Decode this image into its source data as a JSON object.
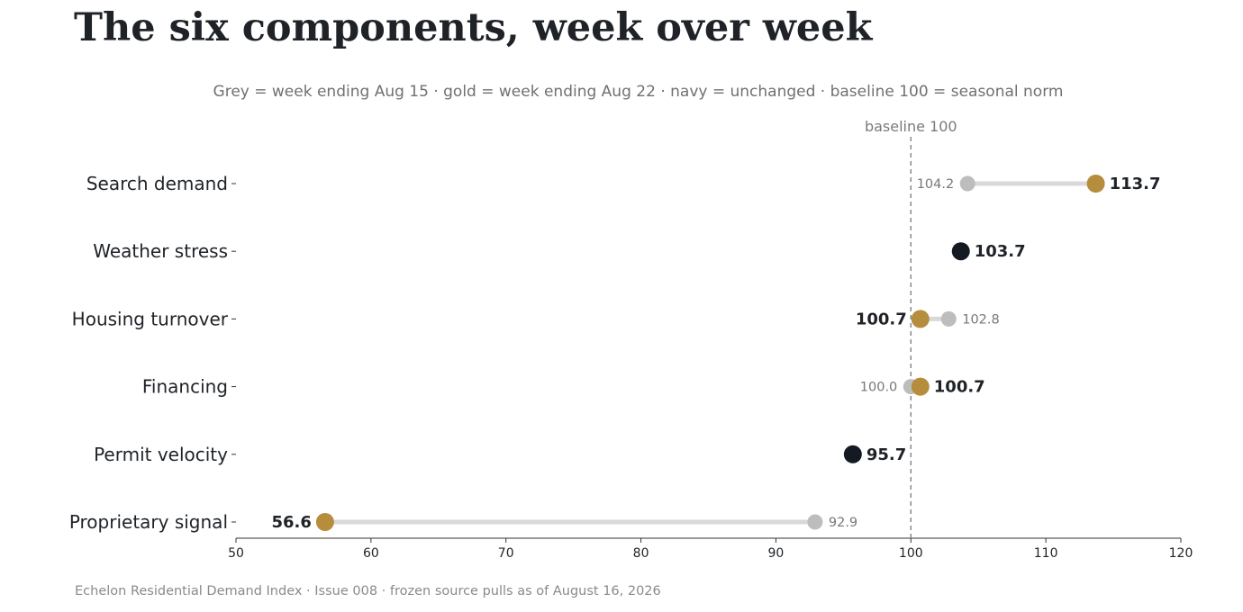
{
  "title": "The six components, week over week",
  "subtitle": "Grey = week ending Aug 15 · gold = week ending Aug 22 · navy = unchanged · baseline 100 = seasonal norm",
  "footnote": "Echelon Residential Demand Index · Issue 008 · frozen source pulls as of August 16, 2026",
  "colors": {
    "previous": "#bdbdbd",
    "current": "#b58d3d",
    "unchanged": "#141a22",
    "connector": "#d9d9d9",
    "baseline": "#8a8a8a",
    "text": "#1f2328"
  },
  "chart_data": {
    "type": "dumbbell",
    "categories": [
      "Search demand",
      "Weather stress",
      "Housing turnover",
      "Financing",
      "Permit velocity",
      "Proprietary signal"
    ],
    "series": [
      {
        "name": "week ending Aug 15",
        "values": [
          104.2,
          103.7,
          102.8,
          100.0,
          95.7,
          92.9
        ]
      },
      {
        "name": "week ending Aug 22",
        "values": [
          113.7,
          103.7,
          100.7,
          100.7,
          95.7,
          56.6
        ]
      }
    ],
    "labels": {
      "previous": [
        "104.2",
        null,
        "102.8",
        "100.0",
        null,
        "92.9"
      ],
      "current": [
        "113.7",
        "103.7",
        "100.7",
        "100.7",
        "95.7",
        "56.6"
      ]
    },
    "unchanged": [
      false,
      true,
      false,
      false,
      true,
      false
    ],
    "xlim": [
      50,
      120
    ],
    "xticks": [
      "50",
      "60",
      "70",
      "80",
      "90",
      "100",
      "110",
      "120"
    ],
    "baseline": {
      "value": 100,
      "label": "baseline 100"
    },
    "xlabel": "",
    "ylabel": ""
  }
}
